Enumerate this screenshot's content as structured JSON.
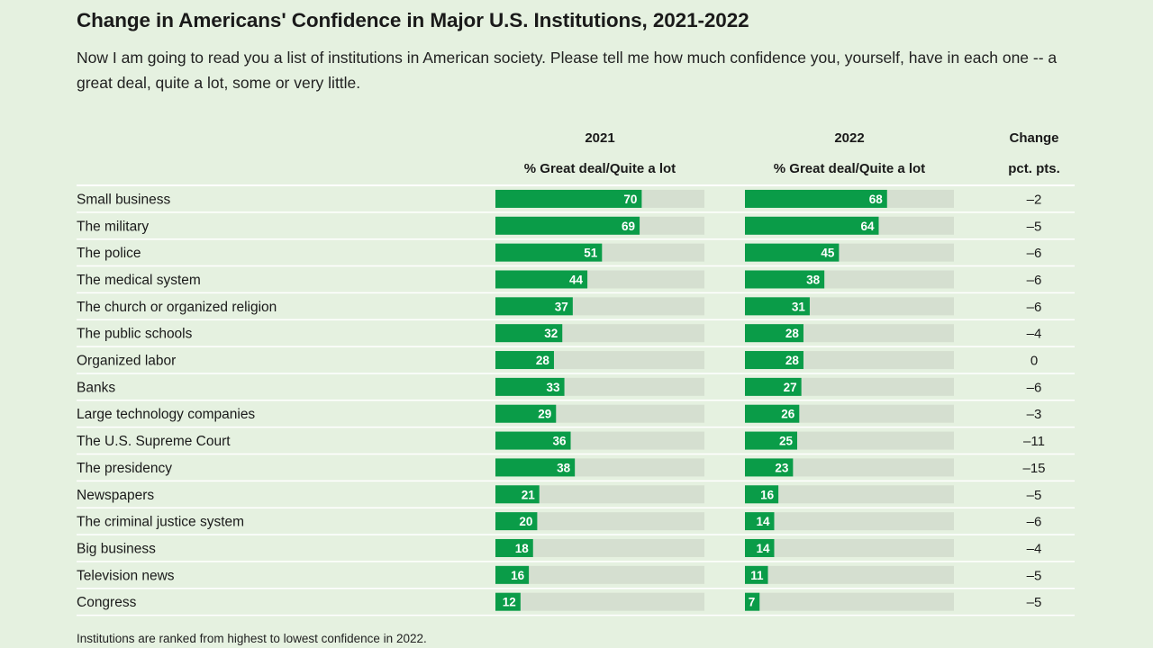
{
  "title": "Change in Americans' Confidence in Major U.S. Institutions, 2021-2022",
  "subtitle": "Now I am going to read you a list of institutions in American society. Please tell me how much confidence you, yourself, have in each one -- a great deal, quite a lot, some or very little.",
  "headers": {
    "y2021": "2021",
    "y2022": "2022",
    "measure_2021": "% Great deal/Quite a lot",
    "measure_2022": "% Great deal/Quite a lot",
    "change": "Change",
    "change_unit": "pct. pts."
  },
  "footnote": "Institutions are ranked from highest to lowest confidence in 2022.",
  "colors": {
    "bar": "#0a9c48",
    "track": "#d5dfd0",
    "background": "#e5f1e0",
    "row_line": "#ffffff"
  },
  "chart_data": {
    "type": "bar",
    "orientation": "horizontal",
    "value_max": 100,
    "categories": [
      "Small business",
      "The military",
      "The police",
      "The medical system",
      "The church or organized religion",
      "The public schools",
      "Organized labor",
      "Banks",
      "Large technology companies",
      "The U.S. Supreme Court",
      "The presidency",
      "Newspapers",
      "The criminal justice system",
      "Big business",
      "Television news",
      "Congress"
    ],
    "series": [
      {
        "name": "2021",
        "values": [
          70,
          69,
          51,
          44,
          37,
          32,
          28,
          33,
          29,
          36,
          38,
          21,
          20,
          18,
          16,
          12
        ]
      },
      {
        "name": "2022",
        "values": [
          68,
          64,
          45,
          38,
          31,
          28,
          28,
          27,
          26,
          25,
          23,
          16,
          14,
          14,
          11,
          7
        ]
      }
    ],
    "change": [
      "–2",
      "–5",
      "–6",
      "–6",
      "–6",
      "–4",
      "0",
      "–6",
      "–3",
      "–11",
      "–15",
      "–5",
      "–6",
      "–4",
      "–5",
      "–5"
    ]
  }
}
